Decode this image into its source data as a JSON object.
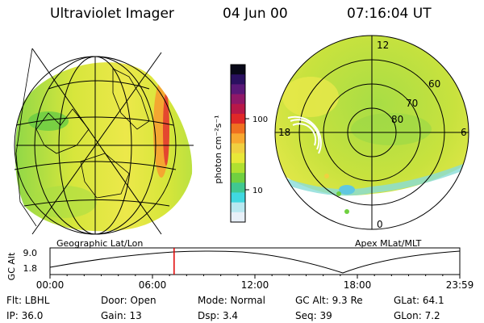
{
  "header": {
    "instrument": "Ultraviolet Imager",
    "date": "04 Jun 00",
    "time": "07:16:04 UT"
  },
  "colorbar": {
    "unit_label": "photon cm⁻²s⁻¹",
    "scale": "log",
    "tick_labels": [
      "100",
      "10"
    ],
    "colors": [
      "#e8f0f8",
      "#b8e8f0",
      "#40d8e0",
      "#40c890",
      "#70d040",
      "#b0e030",
      "#e8e838",
      "#f0d040",
      "#f8a830",
      "#f07020",
      "#e02828",
      "#b81848",
      "#901868",
      "#5a1878",
      "#2a1060",
      "#080818"
    ]
  },
  "left_map": {
    "caption": "Geographic Lat/Lon"
  },
  "right_map": {
    "caption": "Apex MLat/MLT",
    "lat_labels": [
      "80",
      "70",
      "60"
    ],
    "mlt_labels": [
      "12",
      "18",
      "6",
      "0"
    ]
  },
  "orbit_plot": {
    "ylabel": "GC Alt",
    "yticks": [
      "9.0",
      "1.8"
    ],
    "xticks": [
      "00:00",
      "06:00",
      "12:00",
      "18:00",
      "23:59"
    ],
    "current_time_fraction": 0.3028,
    "marker_color": "#e00000"
  },
  "info": {
    "row1": {
      "filter": "Flt: LBHL",
      "door": "Door: Open",
      "mode": "Mode: Normal",
      "gc_alt": "GC Alt: 9.3 Re",
      "glat": "GLat:  64.1"
    },
    "row2": {
      "ip": "IP: 36.0",
      "gain": "Gain: 13",
      "dsp": "Dsp:     3.4",
      "seq": "Seq: 39",
      "glon": "GLon:   7.2"
    }
  }
}
